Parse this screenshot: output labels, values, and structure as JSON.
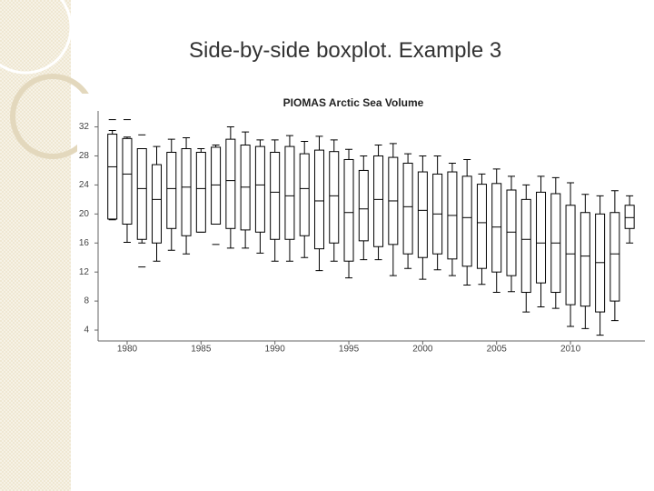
{
  "slide_title": "Side-by-side boxplot. Example 3",
  "chart_data": {
    "type": "box",
    "title": "PIOMAS Arctic Sea Volume",
    "categories": [
      null,
      1980,
      null,
      null,
      null,
      null,
      1985,
      null,
      null,
      null,
      null,
      1990,
      null,
      null,
      null,
      null,
      1995,
      null,
      null,
      null,
      null,
      2000,
      null,
      null,
      null,
      null,
      2005,
      null,
      null,
      null,
      null,
      2010,
      null,
      null,
      null,
      null
    ],
    "whisker_high": [
      31.5,
      30.6,
      29,
      29.3,
      30.3,
      30.5,
      29,
      29.5,
      32,
      31.3,
      30.2,
      30.2,
      30.8,
      30,
      30.7,
      30.2,
      28.9,
      28,
      29.5,
      29.7,
      28.3,
      28,
      28,
      27,
      27.5,
      25.5,
      26.2,
      25.2,
      24,
      25.2,
      25,
      24.3,
      22.7,
      22.5,
      23.2,
      22.5
    ],
    "q3": [
      31,
      30.4,
      29,
      26.8,
      28.5,
      29,
      28.5,
      29.2,
      30.3,
      29.5,
      29.3,
      28.5,
      29.3,
      28.3,
      28.8,
      28.6,
      27.5,
      26,
      28,
      27.8,
      27,
      25.8,
      25.5,
      25.8,
      25.2,
      24.1,
      24.2,
      23.3,
      22,
      23,
      22.8,
      21.2,
      20.2,
      20,
      20.2,
      21.2
    ],
    "median": [
      26.5,
      25.5,
      23.5,
      22,
      23.5,
      23.7,
      23.5,
      24,
      24.6,
      23.7,
      24,
      23,
      22.5,
      23.5,
      21.8,
      22.5,
      20.2,
      20.7,
      22,
      21.8,
      21,
      20.5,
      20,
      19.8,
      19.5,
      18.8,
      18.2,
      17.5,
      16.5,
      16,
      16,
      14.5,
      14.2,
      13.3,
      14.5,
      19.5
    ],
    "q1": [
      19.3,
      18.6,
      16.5,
      16,
      18,
      17,
      17.5,
      18.6,
      18,
      17.8,
      17.5,
      16.5,
      16.5,
      17,
      15.2,
      16,
      13.5,
      16.3,
      15.5,
      15.8,
      14.5,
      14,
      14.5,
      13.8,
      12.8,
      12.5,
      12,
      11.5,
      9.2,
      10.5,
      9.2,
      7.5,
      7.3,
      6.5,
      8,
      18
    ],
    "whisker_low": [
      19.2,
      16.1,
      16,
      13.5,
      15,
      14.5,
      17.5,
      18.6,
      15.3,
      15.3,
      14.6,
      13.5,
      13.5,
      14,
      12.2,
      13.5,
      11.2,
      13.7,
      13.7,
      11.5,
      12.5,
      11,
      12.3,
      11.5,
      10.2,
      10.3,
      9.2,
      9.3,
      6.5,
      7.2,
      7,
      4.5,
      4.2,
      3.3,
      5.3,
      16
    ],
    "outliers": [
      [
        33
      ],
      [
        33
      ],
      [
        30.9,
        12.7
      ],
      [],
      [],
      [],
      [],
      [
        15.8
      ],
      [],
      [],
      [],
      [],
      [],
      [],
      [],
      [],
      [],
      [],
      [],
      [],
      [],
      [],
      [],
      [],
      [],
      [],
      [],
      [],
      [],
      [],
      [],
      [],
      [],
      [],
      [],
      []
    ],
    "color": "#000000",
    "ylim": [
      2.5,
      34.2
    ],
    "yticks": [
      4,
      8,
      12,
      16,
      20,
      24,
      28,
      32
    ]
  }
}
